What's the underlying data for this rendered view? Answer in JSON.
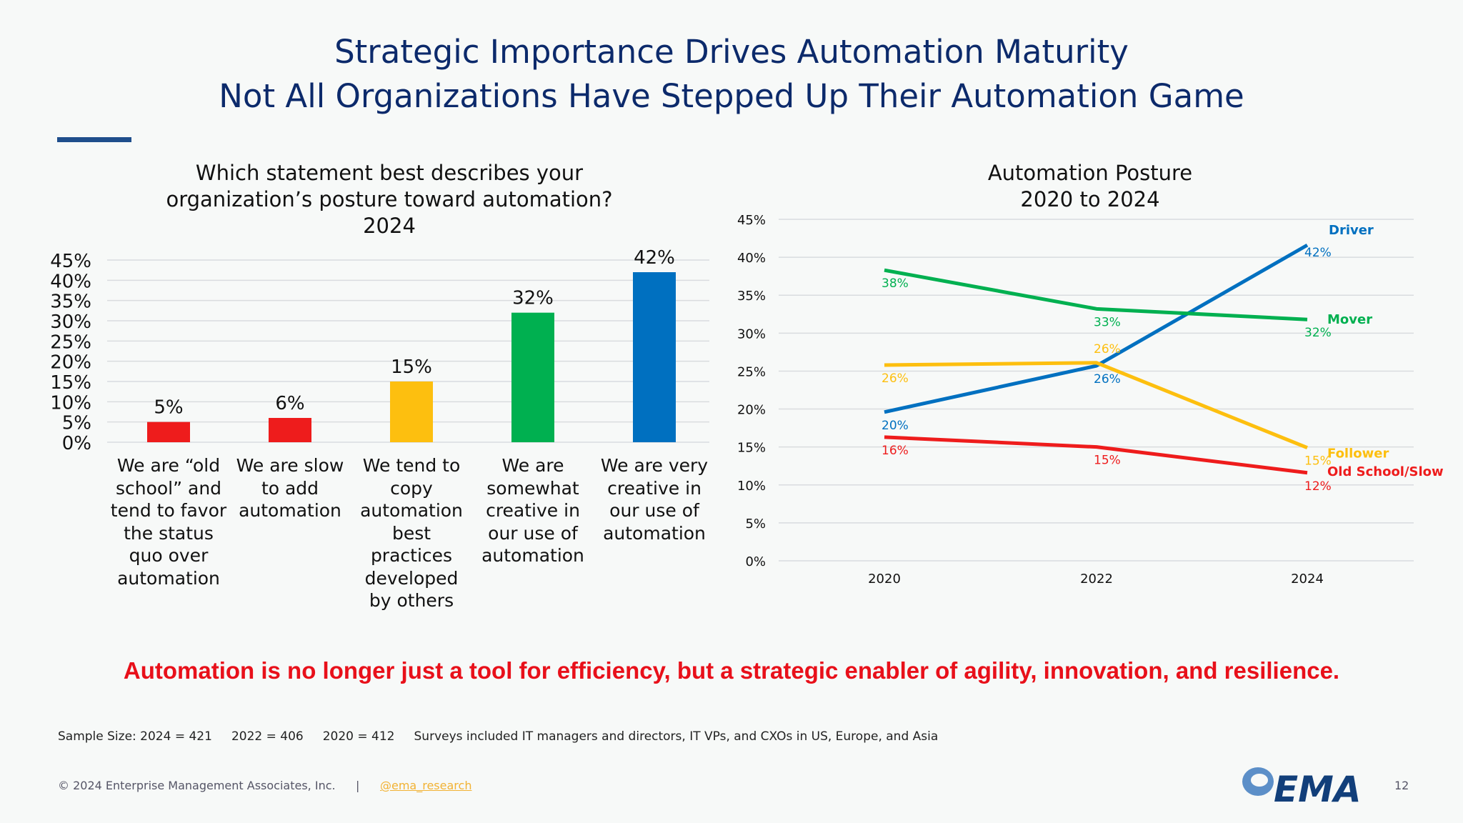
{
  "title": {
    "line1": "Strategic Importance Drives Automation Maturity",
    "line2": "Not All Organizations Have Stepped Up Their Automation Game"
  },
  "colors": {
    "title": "#0c2a6b",
    "red": "#ee1c1c",
    "yellow": "#fdbf0f",
    "green": "#00b050",
    "blue": "#0070c0",
    "message": "#e8101a"
  },
  "chart_data": [
    {
      "type": "bar",
      "title": [
        "Which statement best describes your",
        "organization’s posture toward automation?",
        "2024"
      ],
      "categories": [
        "We are “old school” and tend to favor the status quo over automation",
        "We are slow to add automation",
        "We tend to copy automation best practices developed by others",
        "We are somewhat creative in our use of automation",
        "We are very creative in our use of automation"
      ],
      "category_lines": [
        [
          "We are “old",
          "school” and",
          "tend to favor",
          "the status",
          "quo over",
          "automation"
        ],
        [
          "We are slow",
          "to add",
          "automation"
        ],
        [
          "We tend to",
          "copy",
          "automation",
          "best",
          "practices",
          "developed",
          "by others"
        ],
        [
          "We are",
          "somewhat",
          "creative in",
          "our use of",
          "automation"
        ],
        [
          "We are very",
          "creative in",
          "our use of",
          "automation"
        ]
      ],
      "values": [
        5,
        6,
        15,
        32,
        42
      ],
      "data_labels": [
        "5%",
        "6%",
        "15%",
        "32%",
        "42%"
      ],
      "bar_colors": [
        "#ee1c1c",
        "#ee1c1c",
        "#fdbf0f",
        "#00b050",
        "#0070c0"
      ],
      "ylim": [
        0,
        45
      ],
      "yticks": [
        "0%",
        "5%",
        "10%",
        "15%",
        "20%",
        "25%",
        "30%",
        "35%",
        "40%",
        "45%"
      ],
      "grid": true
    },
    {
      "type": "line",
      "title": [
        "Automation Posture",
        "2020 to 2024"
      ],
      "x": [
        "2020",
        "2022",
        "2024"
      ],
      "ylim": [
        0,
        45
      ],
      "yticks": [
        "0%",
        "5%",
        "10%",
        "15%",
        "20%",
        "25%",
        "30%",
        "35%",
        "40%",
        "45%"
      ],
      "grid": true,
      "series": [
        {
          "name": "Driver",
          "values": [
            19.6,
            25.7,
            41.6
          ],
          "labels": [
            "20%",
            "26%",
            "42%"
          ],
          "color": "#0070c0"
        },
        {
          "name": "Mover",
          "values": [
            38.3,
            33.2,
            31.8
          ],
          "labels": [
            "38%",
            "33%",
            "32%"
          ],
          "color": "#00b050"
        },
        {
          "name": "Follower",
          "values": [
            25.8,
            26.1,
            14.9
          ],
          "labels": [
            "26%",
            "26%",
            "15%"
          ],
          "color": "#fdbf0f"
        },
        {
          "name": "Old School/Slow",
          "values": [
            16.3,
            15.0,
            11.6
          ],
          "labels": [
            "16%",
            "15%",
            "12%"
          ],
          "color": "#ee1c1c"
        }
      ]
    }
  ],
  "message": "Automation is no longer just a tool for efficiency, but a strategic enabler of agility, innovation, and resilience.",
  "note": "Sample Size: 2024 = 421     2022 = 406     2020 = 412     Surveys included IT managers and directors, IT VPs, and CXOs in US, Europe, and Asia",
  "footer": {
    "copyright": "© 2024 Enterprise Management Associates, Inc.",
    "separator": "|",
    "link": "@ema_research",
    "logo": "EMA",
    "page": "12"
  }
}
